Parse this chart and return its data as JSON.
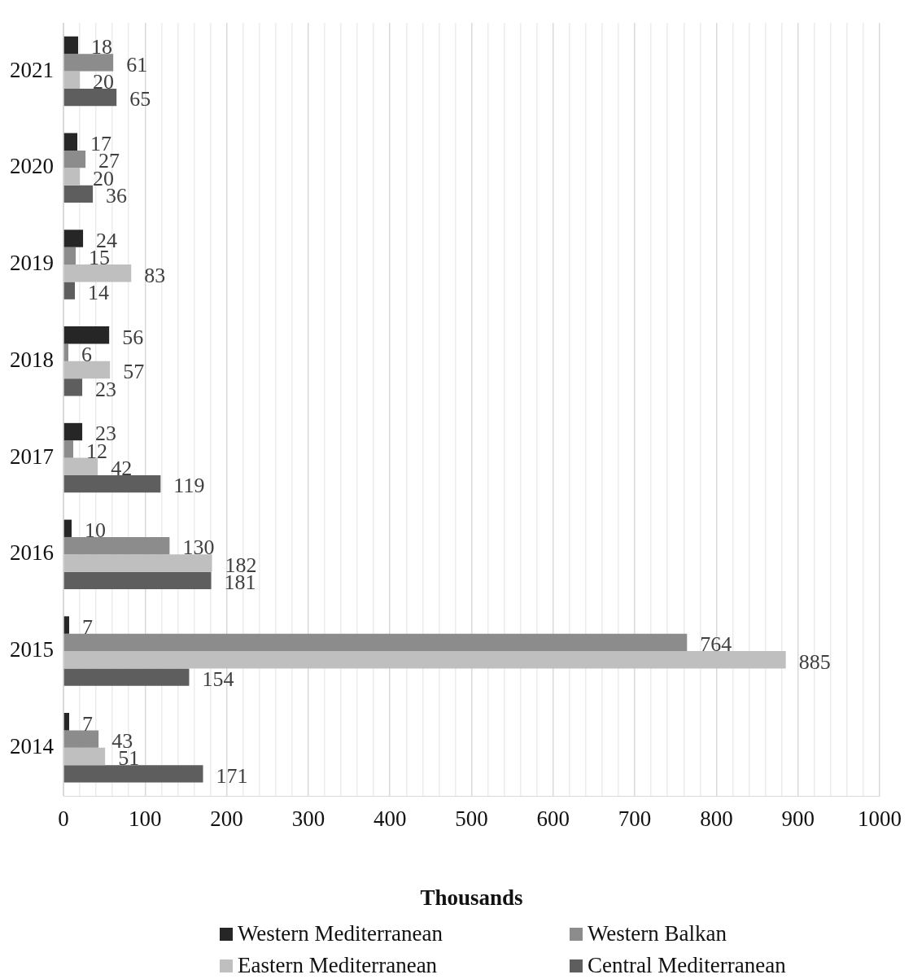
{
  "chart_data": {
    "type": "bar",
    "orientation": "horizontal",
    "xlabel": "Thousands",
    "categories": [
      "2021",
      "2020",
      "2019",
      "2018",
      "2017",
      "2016",
      "2015",
      "2014"
    ],
    "series": [
      {
        "name": "Western Mediterranean",
        "color": "#262626",
        "values": [
          18,
          17,
          24,
          56,
          23,
          10,
          7,
          7
        ]
      },
      {
        "name": "Western Balkan",
        "color": "#8c8c8c",
        "values": [
          61,
          27,
          15,
          6,
          12,
          130,
          764,
          43
        ]
      },
      {
        "name": "Eastern Mediterranean",
        "color": "#bfbfbf",
        "values": [
          20,
          20,
          83,
          57,
          42,
          182,
          885,
          51
        ]
      },
      {
        "name": "Central Mediterranean",
        "color": "#5e5e5e",
        "values": [
          65,
          36,
          14,
          23,
          119,
          181,
          154,
          171
        ]
      }
    ],
    "xlim": [
      0,
      1000
    ],
    "xticks": [
      0,
      {
        "value": 20,
        "label": null
      },
      {
        "value": 40,
        "label": null
      },
      {
        "value": 60,
        "label": null
      },
      {
        "value": 80,
        "label": null
      },
      100,
      {
        "value": 120,
        "label": null
      },
      {
        "value": 140,
        "label": null
      },
      {
        "value": 160,
        "label": null
      },
      {
        "value": 180,
        "label": null
      },
      200,
      {
        "value": 220,
        "label": null
      },
      {
        "value": 240,
        "label": null
      },
      {
        "value": 260,
        "label": null
      },
      {
        "value": 280,
        "label": null
      },
      300,
      {
        "value": 320,
        "label": null
      },
      {
        "value": 340,
        "label": null
      },
      {
        "value": 360,
        "label": null
      },
      {
        "value": 380,
        "label": null
      },
      400,
      {
        "value": 420,
        "label": null
      },
      {
        "value": 440,
        "label": null
      },
      {
        "value": 460,
        "label": null
      },
      {
        "value": 480,
        "label": null
      },
      500,
      {
        "value": 520,
        "label": null
      },
      {
        "value": 540,
        "label": null
      },
      {
        "value": 560,
        "label": null
      },
      {
        "value": 580,
        "label": null
      },
      600,
      {
        "value": 620,
        "label": null
      },
      {
        "value": 640,
        "label": null
      },
      {
        "value": 660,
        "label": null
      },
      {
        "value": 680,
        "label": null
      },
      700,
      {
        "value": 720,
        "label": null
      },
      {
        "value": 740,
        "label": null
      },
      {
        "value": 760,
        "label": null
      },
      {
        "value": 780,
        "label": null
      },
      800,
      {
        "value": 820,
        "label": null
      },
      {
        "value": 840,
        "label": null
      },
      {
        "value": 860,
        "label": null
      },
      {
        "value": 880,
        "label": null
      },
      900,
      {
        "value": 920,
        "label": null
      },
      {
        "value": 940,
        "label": null
      },
      {
        "value": 960,
        "label": null
      },
      {
        "value": 980,
        "label": null
      },
      1000
    ],
    "grid": "x",
    "legend": "bottom",
    "data_labels": true
  }
}
